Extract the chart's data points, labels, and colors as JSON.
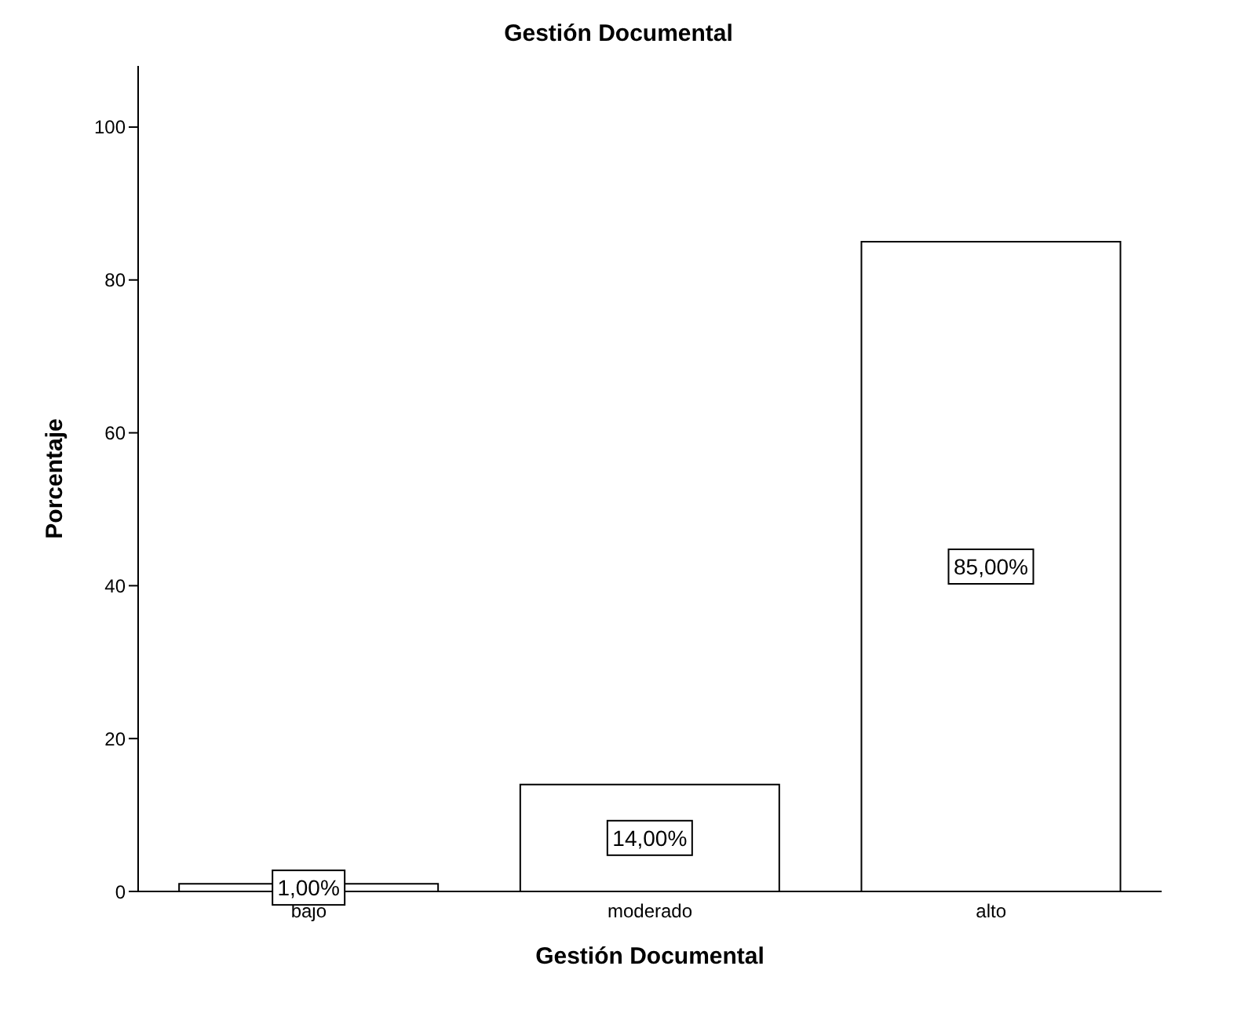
{
  "chart_data": {
    "type": "bar",
    "title": "Gestión Documental",
    "xlabel": "Gestión Documental",
    "ylabel": "Porcentaje",
    "categories": [
      "bajo",
      "moderado",
      "alto"
    ],
    "values": [
      1,
      14,
      85
    ],
    "value_labels": [
      "1,00%",
      "14,00%",
      "85,00%"
    ],
    "color": "#ffffff",
    "ylim": [
      0,
      108
    ],
    "yticks": [
      0,
      20,
      40,
      60,
      80,
      100
    ],
    "grid": false,
    "legend": false
  }
}
